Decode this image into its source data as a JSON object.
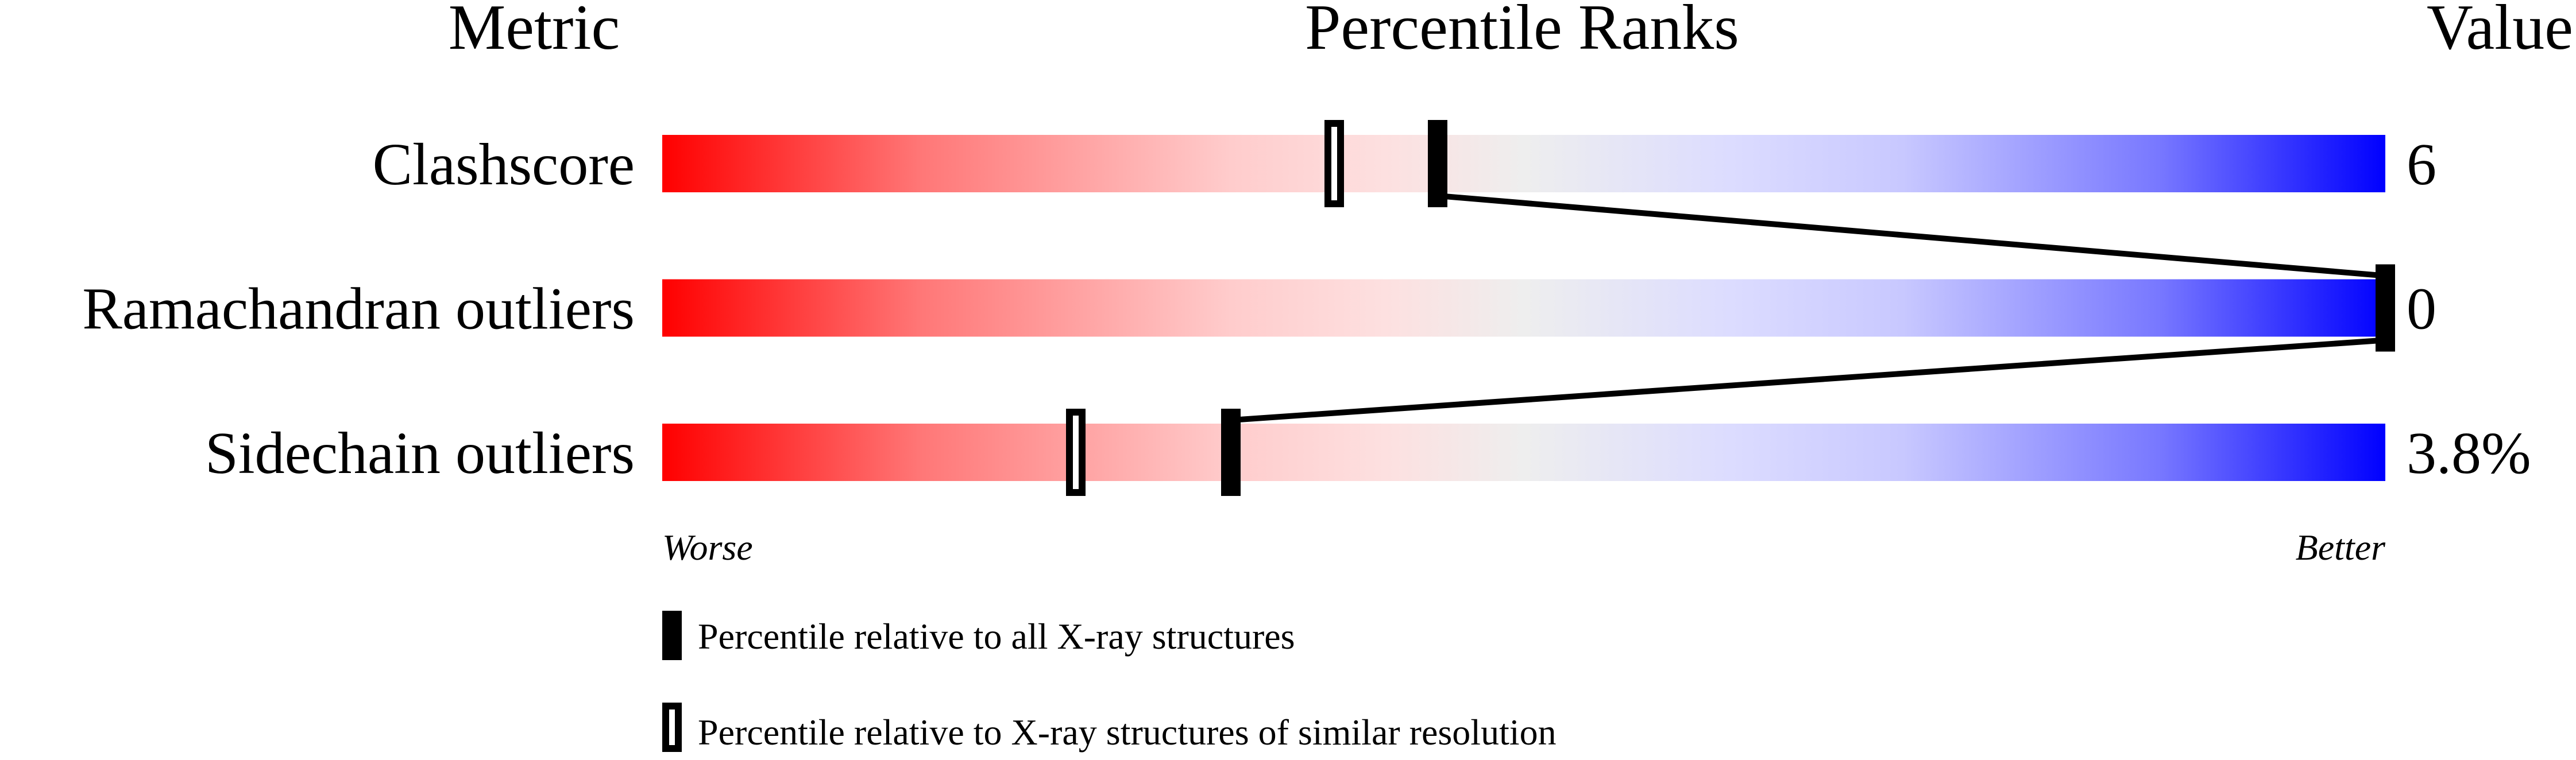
{
  "chart_data": {
    "type": "percentile-bar",
    "headers": {
      "metric": "Metric",
      "ranks": "Percentile Ranks",
      "value": "Value"
    },
    "axis": {
      "min_label": "Worse",
      "max_label": "Better",
      "range": [
        0,
        100
      ]
    },
    "rows": [
      {
        "metric": "Clashscore",
        "value": "6",
        "percentile_all": 45,
        "percentile_similar": 39
      },
      {
        "metric": "Ramachandran outliers",
        "value": "0",
        "percentile_all": 100,
        "percentile_similar": 100
      },
      {
        "metric": "Sidechain outliers",
        "value": "3.8%",
        "percentile_all": 33,
        "percentile_similar": 24
      }
    ],
    "legend": [
      {
        "marker": "filled",
        "label": "Percentile relative to all X-ray structures"
      },
      {
        "marker": "hollow",
        "label": "Percentile relative to X-ray structures of similar resolution"
      }
    ],
    "colors": {
      "worse": "#ff0000",
      "middle": "#eeeeee",
      "better": "#0000ff",
      "marker": "#000000"
    }
  }
}
